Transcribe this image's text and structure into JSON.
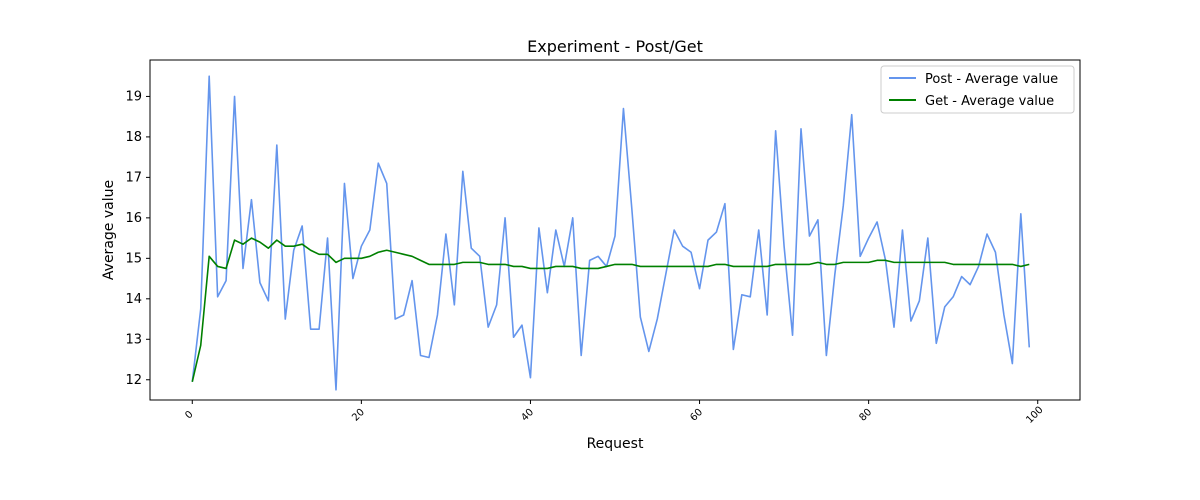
{
  "chart_data": {
    "type": "line",
    "title": "Experiment - Post/Get",
    "xlabel": "Request",
    "ylabel": "Average value",
    "xlim": [
      -5,
      105
    ],
    "ylim": [
      11.5,
      19.9
    ],
    "xticks": [
      0,
      20,
      40,
      60,
      80,
      100
    ],
    "yticks": [
      12,
      13,
      14,
      15,
      16,
      17,
      18,
      19
    ],
    "grid": false,
    "legend_position": "top-right",
    "series": [
      {
        "name": "Post - Average value",
        "color": "#6495ED",
        "values": [
          11.95,
          13.75,
          19.5,
          14.05,
          14.45,
          19.0,
          14.75,
          16.45,
          14.4,
          13.95,
          17.8,
          13.5,
          15.2,
          15.8,
          13.25,
          13.25,
          15.5,
          11.75,
          16.85,
          14.5,
          15.3,
          15.7,
          17.35,
          16.85,
          13.5,
          13.6,
          14.45,
          12.6,
          12.55,
          13.6,
          15.6,
          13.85,
          17.15,
          15.25,
          15.05,
          13.3,
          13.85,
          16.0,
          13.05,
          13.35,
          12.05,
          15.75,
          14.15,
          15.7,
          14.8,
          16.0,
          12.6,
          14.95,
          15.05,
          14.8,
          15.55,
          18.7,
          16.2,
          13.55,
          12.7,
          13.5,
          14.6,
          15.7,
          15.3,
          15.15,
          14.25,
          15.45,
          15.65,
          16.35,
          12.75,
          14.1,
          14.05,
          15.7,
          13.6,
          18.15,
          15.3,
          13.1,
          18.2,
          15.55,
          15.95,
          12.6,
          14.6,
          16.3,
          18.55,
          15.05,
          15.5,
          15.9,
          14.95,
          13.3,
          15.7,
          13.45,
          13.95,
          15.5,
          12.9,
          13.8,
          14.05,
          14.55,
          14.35,
          14.8,
          15.6,
          15.15,
          13.6,
          12.4,
          16.1,
          12.8
        ]
      },
      {
        "name": "Get - Average value",
        "color": "#008000",
        "values": [
          11.95,
          12.85,
          15.05,
          14.8,
          14.75,
          15.45,
          15.35,
          15.5,
          15.4,
          15.25,
          15.45,
          15.3,
          15.3,
          15.35,
          15.2,
          15.1,
          15.1,
          14.9,
          15.0,
          15.0,
          15.0,
          15.05,
          15.15,
          15.2,
          15.15,
          15.1,
          15.05,
          14.95,
          14.85,
          14.85,
          14.85,
          14.85,
          14.9,
          14.9,
          14.9,
          14.85,
          14.85,
          14.85,
          14.8,
          14.8,
          14.75,
          14.75,
          14.75,
          14.8,
          14.8,
          14.8,
          14.75,
          14.75,
          14.75,
          14.8,
          14.85,
          14.85,
          14.85,
          14.8,
          14.8,
          14.8,
          14.8,
          14.8,
          14.8,
          14.8,
          14.8,
          14.8,
          14.85,
          14.85,
          14.8,
          14.8,
          14.8,
          14.8,
          14.8,
          14.85,
          14.85,
          14.85,
          14.85,
          14.85,
          14.9,
          14.85,
          14.85,
          14.9,
          14.9,
          14.9,
          14.9,
          14.95,
          14.95,
          14.9,
          14.9,
          14.9,
          14.9,
          14.9,
          14.9,
          14.9,
          14.85,
          14.85,
          14.85,
          14.85,
          14.85,
          14.85,
          14.85,
          14.85,
          14.8,
          14.85
        ]
      }
    ]
  }
}
